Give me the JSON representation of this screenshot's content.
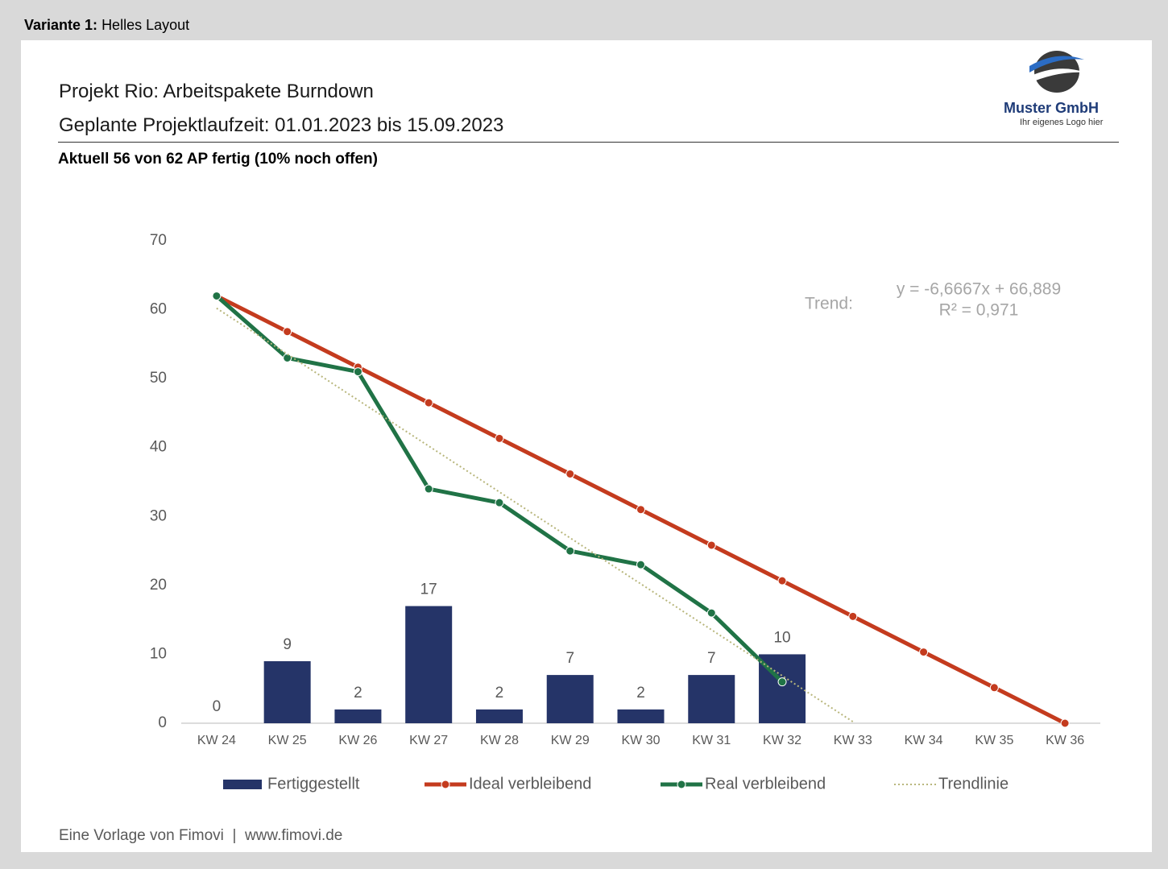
{
  "header": {
    "variant_label": "Variante 1:",
    "variant_name": "Helles Layout"
  },
  "report": {
    "title": "Projekt Rio: Arbeitspakete Burndown",
    "subtitle": "Geplante Projektlaufzeit: 01.01.2023 bis 15.09.2023",
    "status": "Aktuell 56 von 62 AP fertig (10% noch offen)"
  },
  "logo": {
    "name": "Muster GmbH",
    "tagline": "Ihr eigenes Logo hier"
  },
  "footer": {
    "source": "Eine Vorlage von Fimovi",
    "separator": "|",
    "url": "www.fimovi.de"
  },
  "chart_data": {
    "type": "combo",
    "categories": [
      "KW 24",
      "KW 25",
      "KW 26",
      "KW 27",
      "KW 28",
      "KW 29",
      "KW 30",
      "KW 31",
      "KW 32",
      "KW 33",
      "KW 34",
      "KW 35",
      "KW 36"
    ],
    "series": [
      {
        "name": "Fertiggestellt",
        "type": "bar",
        "color": "#253468",
        "values": [
          0,
          9,
          2,
          17,
          2,
          7,
          2,
          7,
          10,
          null,
          null,
          null,
          null
        ]
      },
      {
        "name": "Ideal verbleibend",
        "type": "line",
        "color": "#c43b1e",
        "markers": true,
        "values": [
          62,
          56.83,
          51.67,
          46.5,
          41.33,
          36.17,
          31,
          25.83,
          20.67,
          15.5,
          10.33,
          5.17,
          0
        ]
      },
      {
        "name": "Real verbleibend",
        "type": "line",
        "color": "#207346",
        "markers": true,
        "values": [
          62,
          53,
          51,
          34,
          32,
          25,
          23,
          16,
          6,
          null,
          null,
          null,
          null
        ]
      },
      {
        "name": "Trendlinie",
        "type": "line",
        "color": "#b8b67c",
        "markers": false,
        "dotted": true,
        "values": [
          60.22,
          53.56,
          46.89,
          40.22,
          33.56,
          26.89,
          20.22,
          13.56,
          6.89,
          0.22,
          null,
          null,
          null
        ]
      }
    ],
    "ylim": [
      0,
      70
    ],
    "yticks": [
      0,
      10,
      20,
      30,
      40,
      50,
      60,
      70
    ],
    "annotations": {
      "trend_label": "Trend:",
      "equation": "y = -6,6667x + 66,889",
      "r_squared": "R² = 0,971"
    },
    "legend": "bottom"
  }
}
